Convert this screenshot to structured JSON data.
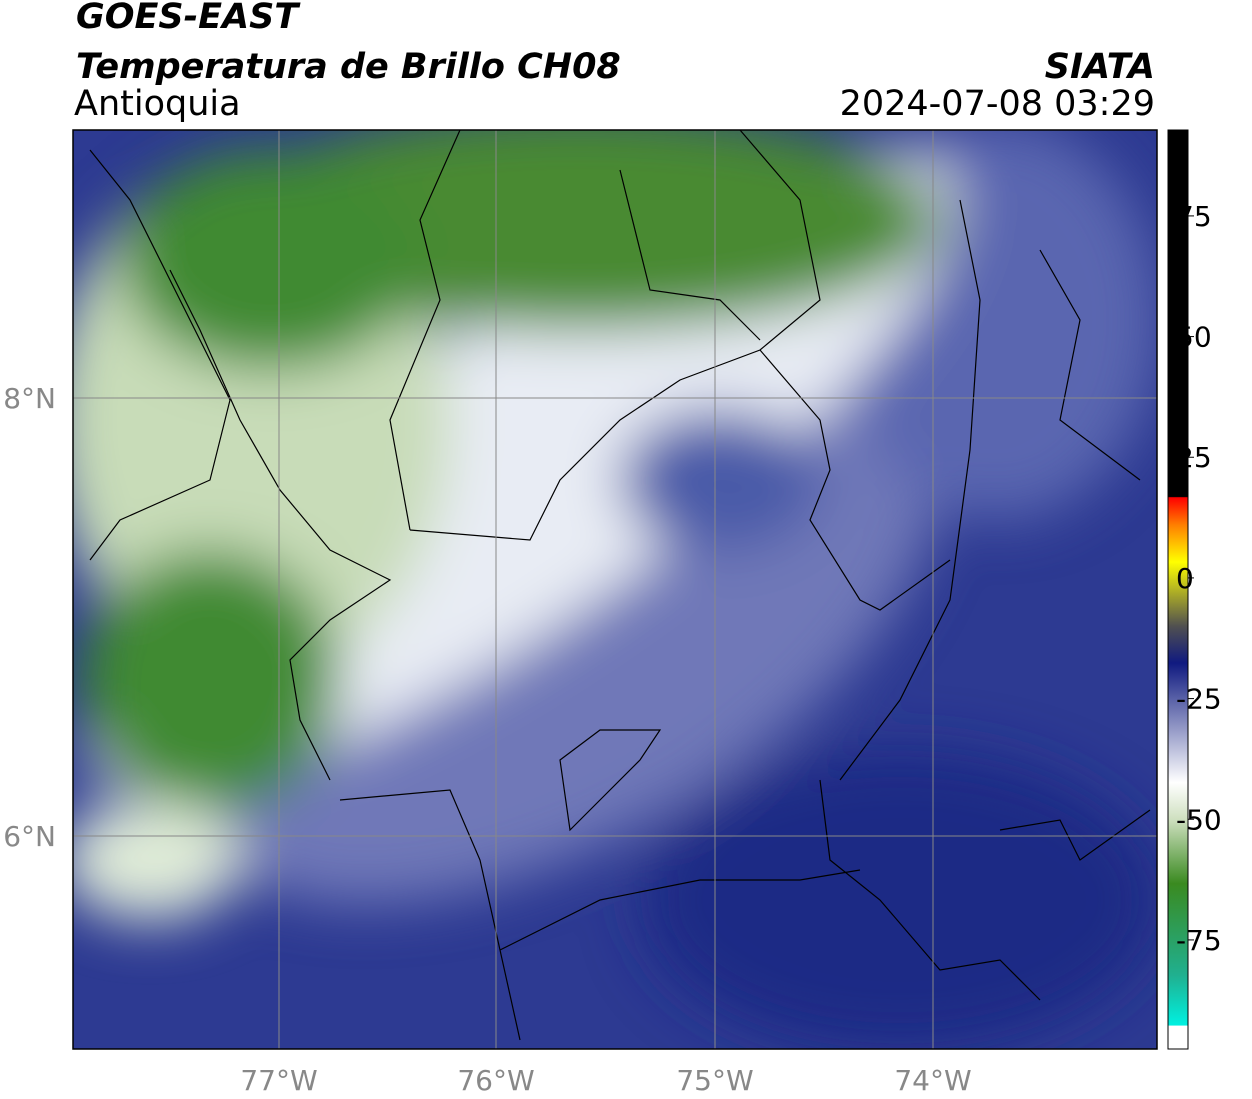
{
  "header": {
    "title": "GOES-EAST",
    "subtitle": "Temperatura de Brillo CH08",
    "region": "Antioquia",
    "source": "SIATA",
    "datetime": "2024-07-08 03:29"
  },
  "map": {
    "lat_labels": [
      "8°N",
      "6°N"
    ],
    "lon_labels": [
      "77°W",
      "76°W",
      "75°W",
      "74°W"
    ]
  },
  "colorbar": {
    "lim": [
      -97.6,
      92.8
    ],
    "ticks": [
      75,
      50,
      25,
      0,
      -25,
      -50,
      -75
    ]
  }
}
